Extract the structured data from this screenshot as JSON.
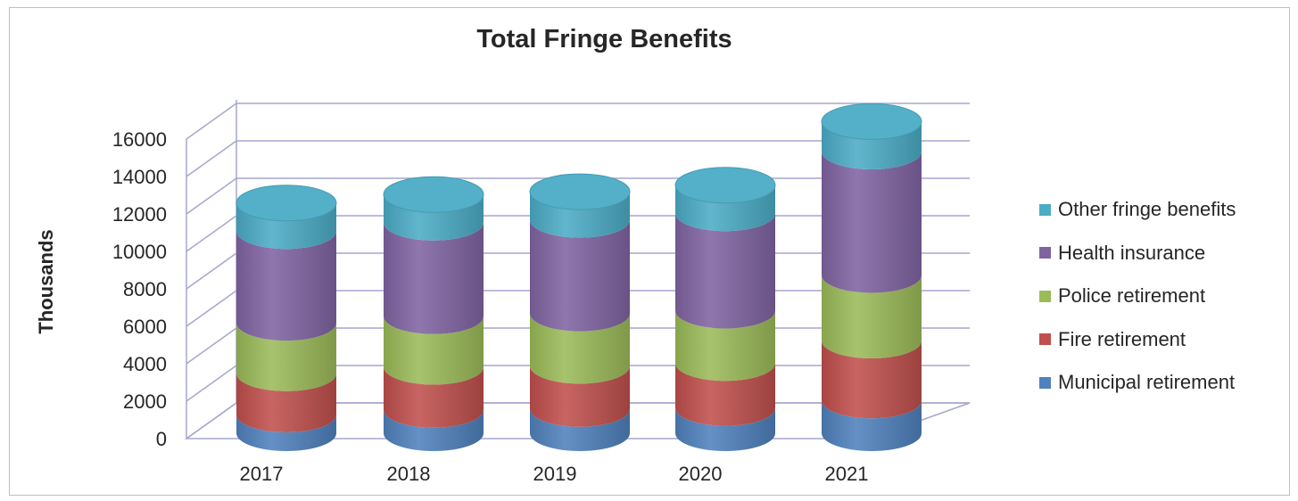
{
  "chart_data": {
    "type": "bar",
    "stacked": true,
    "style": "3d-cylinder",
    "title": "Total Fringe Benefits",
    "xlabel": "",
    "ylabel": "Thousands",
    "ylim": [
      0,
      16000
    ],
    "yticks": [
      0,
      2000,
      4000,
      6000,
      8000,
      10000,
      12000,
      14000,
      16000
    ],
    "categories": [
      "2017",
      "2018",
      "2019",
      "2020",
      "2021"
    ],
    "series": [
      {
        "name": "Municipal retirement",
        "color": "#4f81bd",
        "values": [
          1000,
          1250,
          1300,
          1350,
          1750
        ]
      },
      {
        "name": "Fire retirement",
        "color": "#c0504d",
        "values": [
          2200,
          2300,
          2300,
          2400,
          3200
        ]
      },
      {
        "name": "Police retirement",
        "color": "#9bbb59",
        "values": [
          2700,
          2700,
          2800,
          2800,
          3500
        ]
      },
      {
        "name": "Health insurance",
        "color": "#8064a2",
        "values": [
          4900,
          5000,
          5000,
          5200,
          6600
        ]
      },
      {
        "name": "Other fringe benefits",
        "color": "#4bacc6",
        "values": [
          1500,
          1500,
          1500,
          1500,
          1600
        ]
      }
    ],
    "grid": true,
    "legend": "right"
  }
}
